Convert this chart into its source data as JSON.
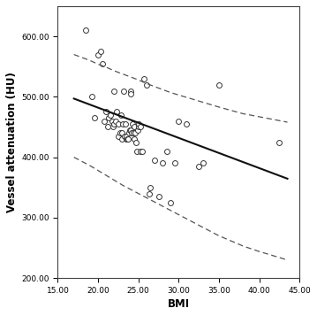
{
  "xlabel": "BMI",
  "ylabel": "Vessel attenuation (HU)",
  "xlim": [
    15.0,
    45.0
  ],
  "ylim": [
    200.0,
    650.0
  ],
  "xticks": [
    15.0,
    20.0,
    25.0,
    30.0,
    35.0,
    40.0,
    45.0
  ],
  "yticks": [
    200.0,
    300.0,
    400.0,
    500.0,
    600.0
  ],
  "scatter_color": "white",
  "scatter_edgecolor": "#333333",
  "line_color": "#111111",
  "ci_color": "#555555",
  "background_color": "#ffffff",
  "scatter_x": [
    18.5,
    19.2,
    19.5,
    20.0,
    20.3,
    20.5,
    20.8,
    21.0,
    21.2,
    21.3,
    21.5,
    21.7,
    21.8,
    22.0,
    22.0,
    22.2,
    22.3,
    22.5,
    22.5,
    22.7,
    22.8,
    23.0,
    23.0,
    23.1,
    23.2,
    23.3,
    23.4,
    23.5,
    23.5,
    23.6,
    23.7,
    23.8,
    23.9,
    24.0,
    24.0,
    24.1,
    24.2,
    24.3,
    24.4,
    24.5,
    24.5,
    24.6,
    24.7,
    24.8,
    24.9,
    25.0,
    25.0,
    25.2,
    25.3,
    25.5,
    25.7,
    26.0,
    26.3,
    26.5,
    27.0,
    27.5,
    28.0,
    28.5,
    29.0,
    29.5,
    30.0,
    31.0,
    32.5,
    33.0,
    35.0,
    42.5
  ],
  "scatter_y": [
    610.0,
    500.0,
    465.0,
    570.0,
    575.0,
    555.0,
    460.0,
    475.0,
    450.0,
    465.0,
    470.0,
    460.0,
    450.0,
    455.0,
    510.0,
    460.0,
    475.0,
    435.0,
    455.0,
    440.0,
    470.0,
    430.0,
    440.0,
    455.0,
    510.0,
    435.0,
    455.0,
    430.0,
    435.0,
    430.0,
    430.0,
    440.0,
    445.0,
    510.0,
    505.0,
    445.0,
    440.0,
    455.0,
    440.0,
    430.0,
    450.0,
    440.0,
    425.0,
    410.0,
    445.0,
    450.0,
    455.0,
    450.0,
    410.0,
    410.0,
    530.0,
    520.0,
    340.0,
    350.0,
    395.0,
    335.0,
    390.0,
    410.0,
    325.0,
    390.0,
    460.0,
    455.0,
    385.0,
    390.0,
    520.0,
    425.0
  ],
  "regression_slope": -5.0,
  "regression_intercept": 582.0,
  "regression_x_start": 17.0,
  "regression_x_end": 43.5,
  "ci_x": [
    17.0,
    18.0,
    19.0,
    20.0,
    21.0,
    22.0,
    23.0,
    24.0,
    25.0,
    26.0,
    27.0,
    28.0,
    29.0,
    30.0,
    32.0,
    35.0,
    38.0,
    40.0,
    43.5
  ],
  "ci_upper_y": [
    570.0,
    565.0,
    560.0,
    554.0,
    549.0,
    543.0,
    538.0,
    533.0,
    528.0,
    522.0,
    517.0,
    512.0,
    507.0,
    503.0,
    495.0,
    483.0,
    472.0,
    467.0,
    458.0
  ],
  "ci_lower_y": [
    400.0,
    393.0,
    386.0,
    378.0,
    370.0,
    362.0,
    354.0,
    347.0,
    340.0,
    333.0,
    326.0,
    319.0,
    312.0,
    305.0,
    291.0,
    270.0,
    253.0,
    244.0,
    230.0
  ]
}
